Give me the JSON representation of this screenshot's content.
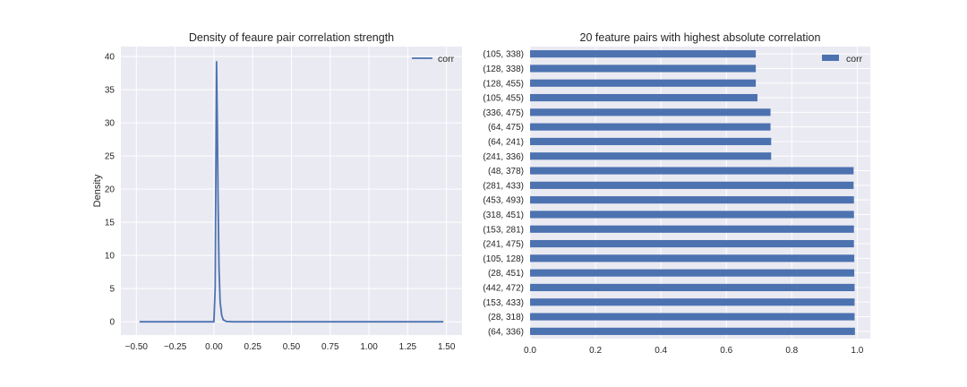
{
  "chart_data": [
    {
      "type": "line",
      "title": "Density of feaure pair correlation strength",
      "xlabel": "",
      "ylabel": "Density",
      "xlim": [
        -0.6,
        1.6
      ],
      "ylim": [
        -2,
        41.5
      ],
      "xticks": [
        -0.5,
        -0.25,
        0.0,
        0.25,
        0.5,
        0.75,
        1.0,
        1.25,
        1.5
      ],
      "xtick_labels": [
        "−0.50",
        "−0.25",
        "0.00",
        "0.25",
        "0.50",
        "0.75",
        "1.00",
        "1.25",
        "1.50"
      ],
      "yticks": [
        0,
        5,
        10,
        15,
        20,
        25,
        30,
        35,
        40
      ],
      "ytick_labels": [
        "0",
        "5",
        "10",
        "15",
        "20",
        "25",
        "30",
        "35",
        "40"
      ],
      "grid": true,
      "legend": "top-right",
      "series": [
        {
          "name": "corr",
          "color": "#4c72b0",
          "x": [
            -0.48,
            0.0,
            0.008,
            0.012,
            0.017,
            0.022,
            0.027,
            0.033,
            0.04,
            0.05,
            0.06,
            0.08,
            0.12,
            1.48
          ],
          "y": [
            0,
            0,
            5,
            20,
            39.3,
            30,
            18,
            8,
            3,
            1,
            0.3,
            0.05,
            0,
            0
          ]
        }
      ]
    },
    {
      "type": "bar",
      "orientation": "horizontal",
      "title": "20 feature pairs with highest absolute correlation",
      "xlabel": "",
      "ylabel": "",
      "xlim": [
        0.0,
        1.04
      ],
      "xticks": [
        0.0,
        0.2,
        0.4,
        0.6,
        0.8,
        1.0
      ],
      "xtick_labels": [
        "0.0",
        "0.2",
        "0.4",
        "0.6",
        "0.8",
        "1.0"
      ],
      "grid": true,
      "legend": "top-right",
      "categories": [
        "(105, 338)",
        "(128, 338)",
        "(128, 455)",
        "(105, 455)",
        "(336, 475)",
        "(64, 475)",
        "(64, 241)",
        "(241, 336)",
        "(48, 378)",
        "(281, 433)",
        "(453, 493)",
        "(318, 451)",
        "(153, 281)",
        "(241, 475)",
        "(105, 128)",
        "(28, 451)",
        "(442, 472)",
        "(153, 433)",
        "(28, 318)",
        "(64, 336)"
      ],
      "series": [
        {
          "name": "corr",
          "color": "#4c72b0",
          "values": [
            0.69,
            0.69,
            0.69,
            0.695,
            0.735,
            0.735,
            0.737,
            0.737,
            0.989,
            0.989,
            0.99,
            0.99,
            0.99,
            0.99,
            0.991,
            0.991,
            0.992,
            0.992,
            0.992,
            0.993
          ]
        }
      ]
    }
  ]
}
